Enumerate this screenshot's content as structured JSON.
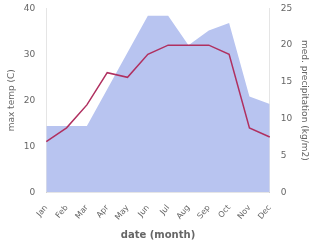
{
  "chart_data": {
    "type": "line",
    "categories": [
      "Jan",
      "Feb",
      "Mar",
      "Apr",
      "May",
      "Jun",
      "Jul",
      "Aug",
      "Sep",
      "Oct",
      "Nov",
      "Dec"
    ],
    "series": [
      {
        "type": "area",
        "axis": "y2",
        "color": "#b8c4f0",
        "values": [
          9,
          9,
          9,
          14,
          19,
          24,
          24,
          20,
          22,
          23,
          13,
          12
        ]
      },
      {
        "type": "line",
        "color": "#b03060",
        "values": [
          11,
          14,
          19,
          26,
          25,
          30,
          32,
          32,
          32,
          30,
          14,
          12
        ]
      }
    ],
    "xlabel": "date (month)",
    "ylabel": "max temp (C)",
    "y2label": "med. precipitation (kg/m2)",
    "ylim": [
      0,
      40
    ],
    "yticks": [
      0,
      10,
      20,
      30,
      40
    ],
    "y2lim": [
      0,
      25
    ],
    "y2ticks": [
      0,
      5,
      10,
      15,
      20,
      25
    ],
    "grid": false
  }
}
